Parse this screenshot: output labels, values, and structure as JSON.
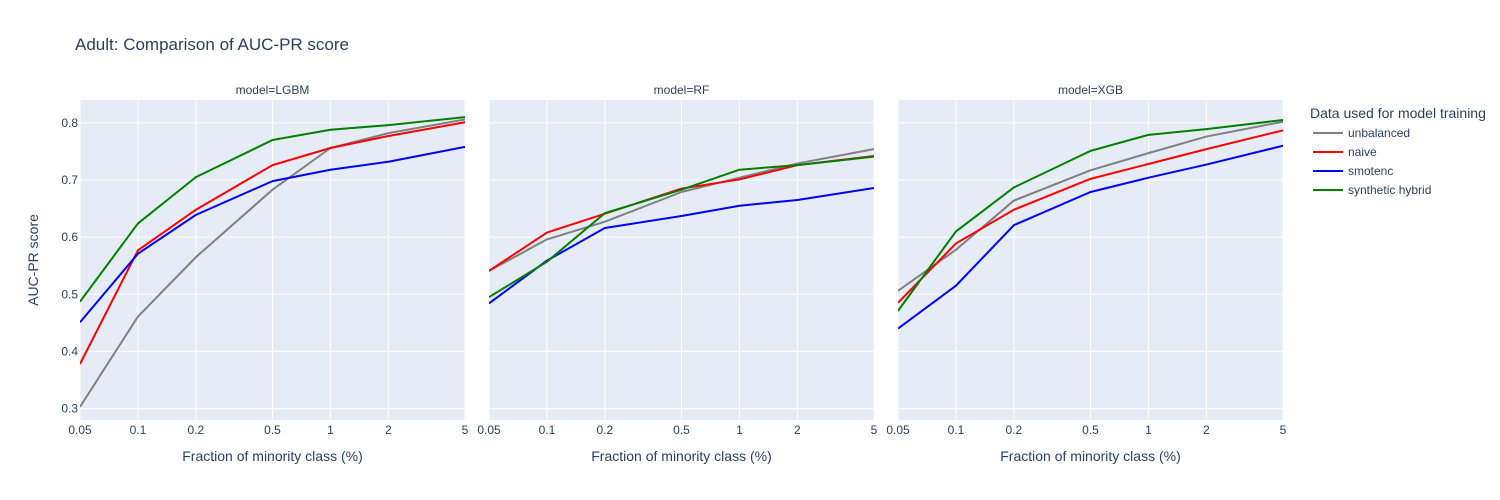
{
  "chart_data": {
    "type": "line",
    "title": "Adult: Comparison of AUC-PR score",
    "xlabel": "Fraction of minority class (%)",
    "ylabel": "AUC-PR score",
    "x_scale": "log",
    "x": [
      0.05,
      0.1,
      0.2,
      0.5,
      1,
      2,
      5
    ],
    "x_tick_labels": [
      "0.05",
      "0.1",
      "0.2",
      "0.5",
      "1",
      "2",
      "5"
    ],
    "y_ticks": [
      0.3,
      0.4,
      0.5,
      0.6,
      0.7,
      0.8
    ],
    "y_tick_labels": [
      "0.3",
      "0.4",
      "0.5",
      "0.6",
      "0.7",
      "0.8"
    ],
    "ylim": [
      0.28,
      0.84
    ],
    "grid": true,
    "legend": {
      "title": "Data used for model training",
      "placement": "right",
      "entries": [
        "unbalanced",
        "naive",
        "smotenc",
        "synthetic hybrid"
      ]
    },
    "colors": {
      "unbalanced": "#808080",
      "naive": "#ff0000",
      "smotenc": "#0000ff",
      "synthetic hybrid": "#008000",
      "plot_bg": "#e5ecf6",
      "text": "#2a3f5f"
    },
    "panels": [
      {
        "title": "model=LGBM",
        "series": [
          {
            "name": "unbalanced",
            "values": [
              0.303,
              0.461,
              0.565,
              0.683,
              0.756,
              0.782,
              0.806
            ]
          },
          {
            "name": "naive",
            "values": [
              0.378,
              0.577,
              0.648,
              0.726,
              0.756,
              0.777,
              0.801
            ]
          },
          {
            "name": "smotenc",
            "values": [
              0.451,
              0.571,
              0.639,
              0.698,
              0.718,
              0.732,
              0.758
            ]
          },
          {
            "name": "synthetic hybrid",
            "values": [
              0.487,
              0.624,
              0.705,
              0.77,
              0.788,
              0.796,
              0.81
            ]
          }
        ]
      },
      {
        "title": "model=RF",
        "series": [
          {
            "name": "unbalanced",
            "values": [
              0.541,
              0.596,
              0.627,
              0.679,
              0.704,
              0.729,
              0.754
            ]
          },
          {
            "name": "naive",
            "values": [
              0.541,
              0.608,
              0.641,
              0.685,
              0.701,
              0.726,
              0.742
            ]
          },
          {
            "name": "smotenc",
            "values": [
              0.484,
              0.559,
              0.616,
              0.637,
              0.655,
              0.665,
              0.686
            ]
          },
          {
            "name": "synthetic hybrid",
            "values": [
              0.495,
              0.557,
              0.642,
              0.683,
              0.718,
              0.726,
              0.741
            ]
          }
        ]
      },
      {
        "title": "model=XGB",
        "series": [
          {
            "name": "unbalanced",
            "values": [
              0.506,
              0.578,
              0.664,
              0.717,
              0.747,
              0.776,
              0.802
            ]
          },
          {
            "name": "naive",
            "values": [
              0.485,
              0.589,
              0.648,
              0.702,
              0.728,
              0.754,
              0.787
            ]
          },
          {
            "name": "smotenc",
            "values": [
              0.44,
              0.515,
              0.621,
              0.679,
              0.704,
              0.727,
              0.76
            ]
          },
          {
            "name": "synthetic hybrid",
            "values": [
              0.471,
              0.61,
              0.687,
              0.751,
              0.779,
              0.789,
              0.805
            ]
          }
        ]
      }
    ]
  }
}
